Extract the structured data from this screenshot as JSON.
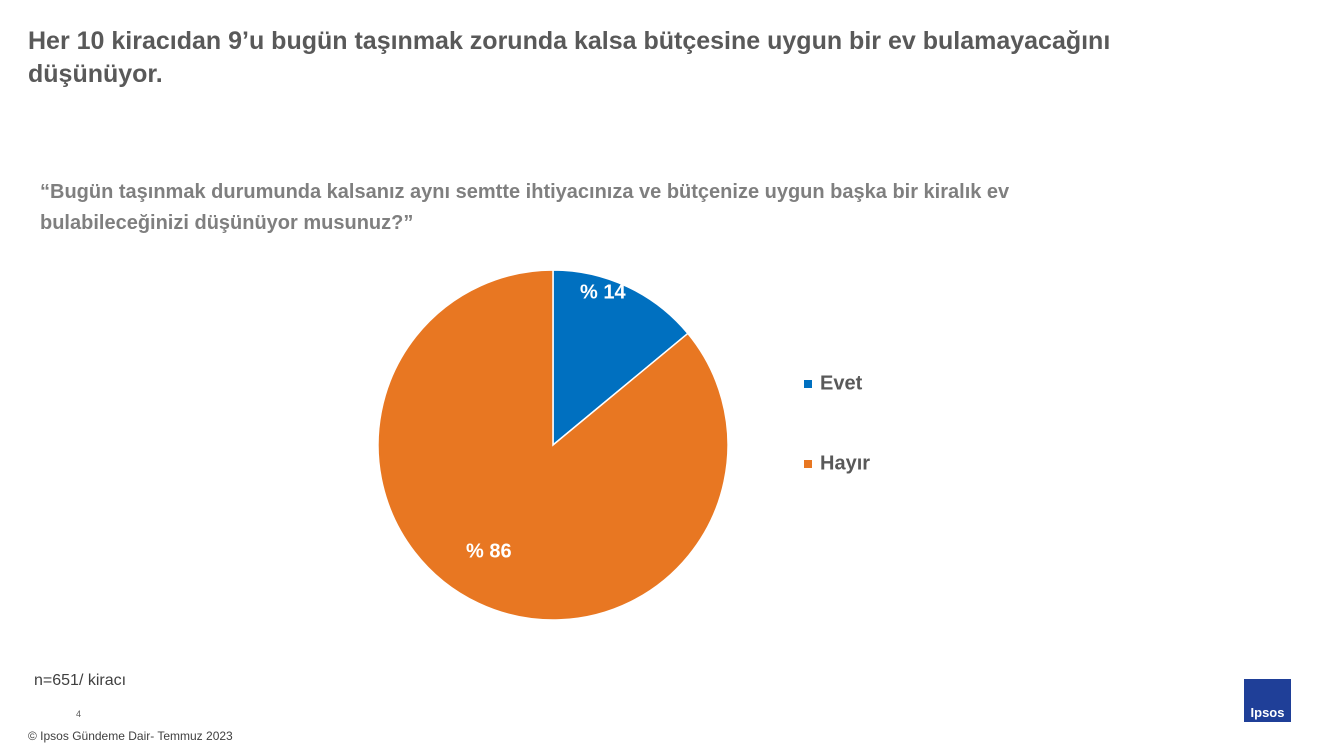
{
  "chart_data": {
    "type": "pie",
    "title": "Her 10 kiracıdan 9’u bugün taşınmak zorunda kalsa bütçesine uygun bir ev bulamayacağını düşünüyor.",
    "subtitle": "“Bugün taşınmak durumunda kalsanız aynı semtte ihtiyacınıza ve bütçenize uygun başka bir kiralık ev bulabileceğinizi düşünüyor musunuz?”",
    "categories": [
      "Evet",
      "Hayır"
    ],
    "values": [
      14,
      86
    ],
    "value_labels": [
      "% 14",
      "% 86"
    ],
    "colors": [
      "#0070c0",
      "#e87722"
    ],
    "legend": "right",
    "note": "n=651/ kiracı",
    "page_number": 4,
    "footer": "© Ipsos Gündeme Dair- Temmuz 2023",
    "logo": "Ipsos"
  }
}
